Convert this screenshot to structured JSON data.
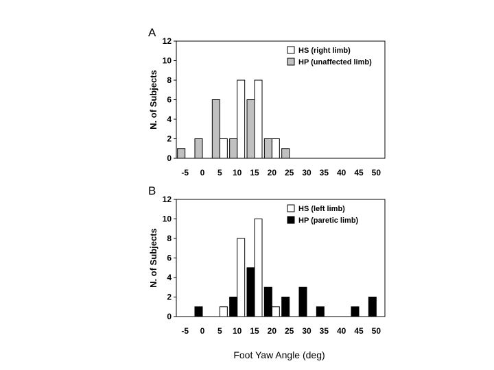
{
  "chart_data": [
    {
      "type": "bar",
      "panel_label": "A",
      "categories": [
        "-5",
        "0",
        "5",
        "10",
        "15",
        "20",
        "25",
        "30",
        "35",
        "40",
        "45",
        "50"
      ],
      "series": [
        {
          "name": "HS (right limb)",
          "color": "#ffffff",
          "values": [
            0,
            0,
            2,
            8,
            8,
            2,
            0,
            0,
            0,
            0,
            0,
            0
          ]
        },
        {
          "name": "HP (unaffected limb)",
          "color": "#c0c0c0",
          "values": [
            1,
            2,
            6,
            2,
            6,
            2,
            1,
            0,
            0,
            0,
            0,
            0
          ]
        }
      ],
      "ylabel": "N. of Subjects",
      "xlabel": "",
      "ylim": [
        0,
        12
      ],
      "yticks": [
        "0",
        "2",
        "4",
        "6",
        "8",
        "10",
        "12"
      ],
      "legend_position": "top-right",
      "grid": false
    },
    {
      "type": "bar",
      "panel_label": "B",
      "categories": [
        "-5",
        "0",
        "5",
        "10",
        "15",
        "20",
        "25",
        "30",
        "35",
        "40",
        "45",
        "50"
      ],
      "series": [
        {
          "name": "HS (left limb)",
          "color": "#ffffff",
          "values": [
            0,
            0,
            1,
            8,
            10,
            1,
            0,
            0,
            0,
            0,
            0,
            0
          ]
        },
        {
          "name": "HP (paretic limb)",
          "color": "#000000",
          "values": [
            0,
            1,
            0,
            2,
            5,
            3,
            2,
            3,
            1,
            0,
            1,
            2
          ]
        }
      ],
      "ylabel": "N. of Subjects",
      "xlabel": "Foot Yaw Angle (deg)",
      "ylim": [
        0,
        12
      ],
      "yticks": [
        "0",
        "2",
        "4",
        "6",
        "8",
        "10",
        "12"
      ],
      "legend_position": "top-right",
      "grid": false
    }
  ]
}
